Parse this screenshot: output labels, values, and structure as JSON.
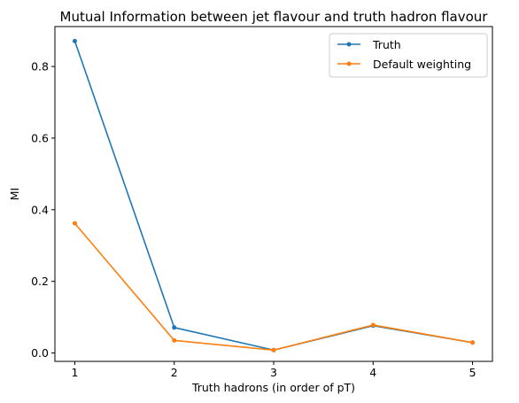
{
  "chart_data": {
    "type": "line",
    "title": "Mutual Information between jet flavour and truth hadron flavour",
    "xlabel": "Truth hadrons (in order of pT)",
    "ylabel": "MI",
    "x": [
      1,
      2,
      3,
      4,
      5
    ],
    "xticks": [
      "1",
      "2",
      "3",
      "4",
      "5"
    ],
    "yticks": [
      "0.0",
      "0.2",
      "0.4",
      "0.6",
      "0.8"
    ],
    "xlim": [
      0.8,
      5.2
    ],
    "ylim": [
      -0.0235,
      0.9115
    ],
    "grid": false,
    "legend_position": "top-right",
    "series": [
      {
        "name": "Truth",
        "color": "#1f77b4",
        "values": [
          0.871,
          0.071,
          0.008,
          0.076,
          0.029
        ]
      },
      {
        "name": "Default weighting",
        "color": "#ff7f0e",
        "values": [
          0.362,
          0.035,
          0.008,
          0.078,
          0.029
        ]
      }
    ]
  }
}
